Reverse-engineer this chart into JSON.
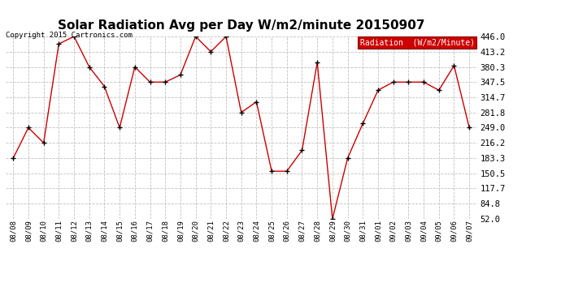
{
  "title": "Solar Radiation Avg per Day W/m2/minute 20150907",
  "copyright": "Copyright 2015 Cartronics.com",
  "legend_label": "Radiation  (W/m2/Minute)",
  "x_labels": [
    "08/08",
    "08/09",
    "08/10",
    "08/11",
    "08/12",
    "08/13",
    "08/14",
    "08/15",
    "08/16",
    "08/17",
    "08/18",
    "08/19",
    "08/20",
    "08/21",
    "08/22",
    "08/23",
    "08/24",
    "08/25",
    "08/26",
    "08/27",
    "08/28",
    "08/29",
    "08/30",
    "08/31",
    "09/01",
    "09/02",
    "09/03",
    "09/04",
    "09/05",
    "09/06",
    "09/07"
  ],
  "y_values": [
    183.3,
    249.0,
    216.2,
    430.0,
    446.0,
    380.3,
    338.0,
    249.0,
    380.3,
    347.5,
    347.5,
    363.0,
    446.0,
    413.2,
    446.0,
    281.8,
    305.0,
    155.0,
    155.0,
    200.0,
    390.0,
    52.0,
    183.3,
    258.0,
    330.0,
    347.5,
    347.5,
    347.5,
    330.0,
    383.0,
    249.0
  ],
  "y_ticks": [
    52.0,
    84.8,
    117.7,
    150.5,
    183.3,
    216.2,
    249.0,
    281.8,
    314.7,
    347.5,
    380.3,
    413.2,
    446.0
  ],
  "y_tick_labels": [
    "52.0",
    "84.8",
    "117.7",
    "150.5",
    "183.3",
    "216.2",
    "249.0",
    "281.8",
    "314.7",
    "347.5",
    "380.3",
    "413.2",
    "446.0"
  ],
  "line_color": "#cc0000",
  "marker_color": "#000000",
  "background_color": "#ffffff",
  "grid_color": "#c0c0c0",
  "title_fontsize": 11,
  "legend_bg": "#cc0000",
  "legend_text_color": "#ffffff"
}
